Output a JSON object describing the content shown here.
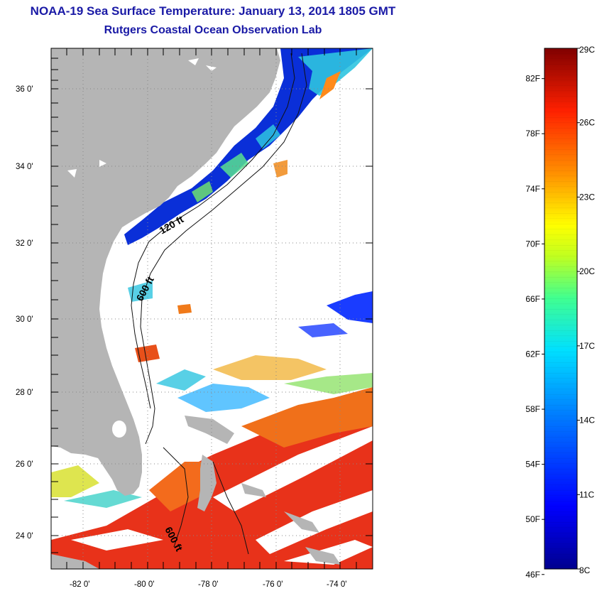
{
  "title": "NOAA-19 Sea Surface Temperature:  January 13, 2014 1805 GMT",
  "subtitle": "Rutgers Coastal Ocean Observation Lab",
  "map": {
    "lon_range": [
      -83,
      -73
    ],
    "lat_range": [
      23,
      37
    ],
    "x_ticks": [
      {
        "value": -82,
        "label": "-82 0'"
      },
      {
        "value": -80,
        "label": "-80 0'"
      },
      {
        "value": -78,
        "label": "-78 0'"
      },
      {
        "value": -76,
        "label": "-76 0'"
      },
      {
        "value": -74,
        "label": "-74 0'"
      }
    ],
    "y_ticks": [
      {
        "value": 36,
        "label": "36 0'"
      },
      {
        "value": 34,
        "label": "34 0'"
      },
      {
        "value": 32,
        "label": "32 0'"
      },
      {
        "value": 30,
        "label": "30 0'"
      },
      {
        "value": 28,
        "label": "28 0'"
      },
      {
        "value": 26,
        "label": "26 0'"
      },
      {
        "value": 24,
        "label": "24 0'"
      }
    ],
    "isobath_labels": [
      "120 ft",
      "600 ft",
      "600 ft"
    ],
    "colors": {
      "land": "#b5b5b5",
      "cloud": "#ffffff",
      "grid": "#888888"
    }
  },
  "colorbar": {
    "min_c": 8,
    "max_c": 29,
    "fahrenheit_labels": [
      "82F",
      "78F",
      "74F",
      "70F",
      "66F",
      "62F",
      "58F",
      "54F",
      "50F",
      "46F"
    ],
    "celsius_labels": [
      "29C",
      "26C",
      "23C",
      "20C",
      "17C",
      "14C",
      "11C",
      "8C"
    ],
    "fahrenheit_values": [
      82,
      78,
      74,
      70,
      66,
      62,
      58,
      54,
      50,
      46
    ],
    "celsius_values": [
      29,
      26,
      23,
      20,
      17,
      14,
      11,
      8
    ]
  }
}
